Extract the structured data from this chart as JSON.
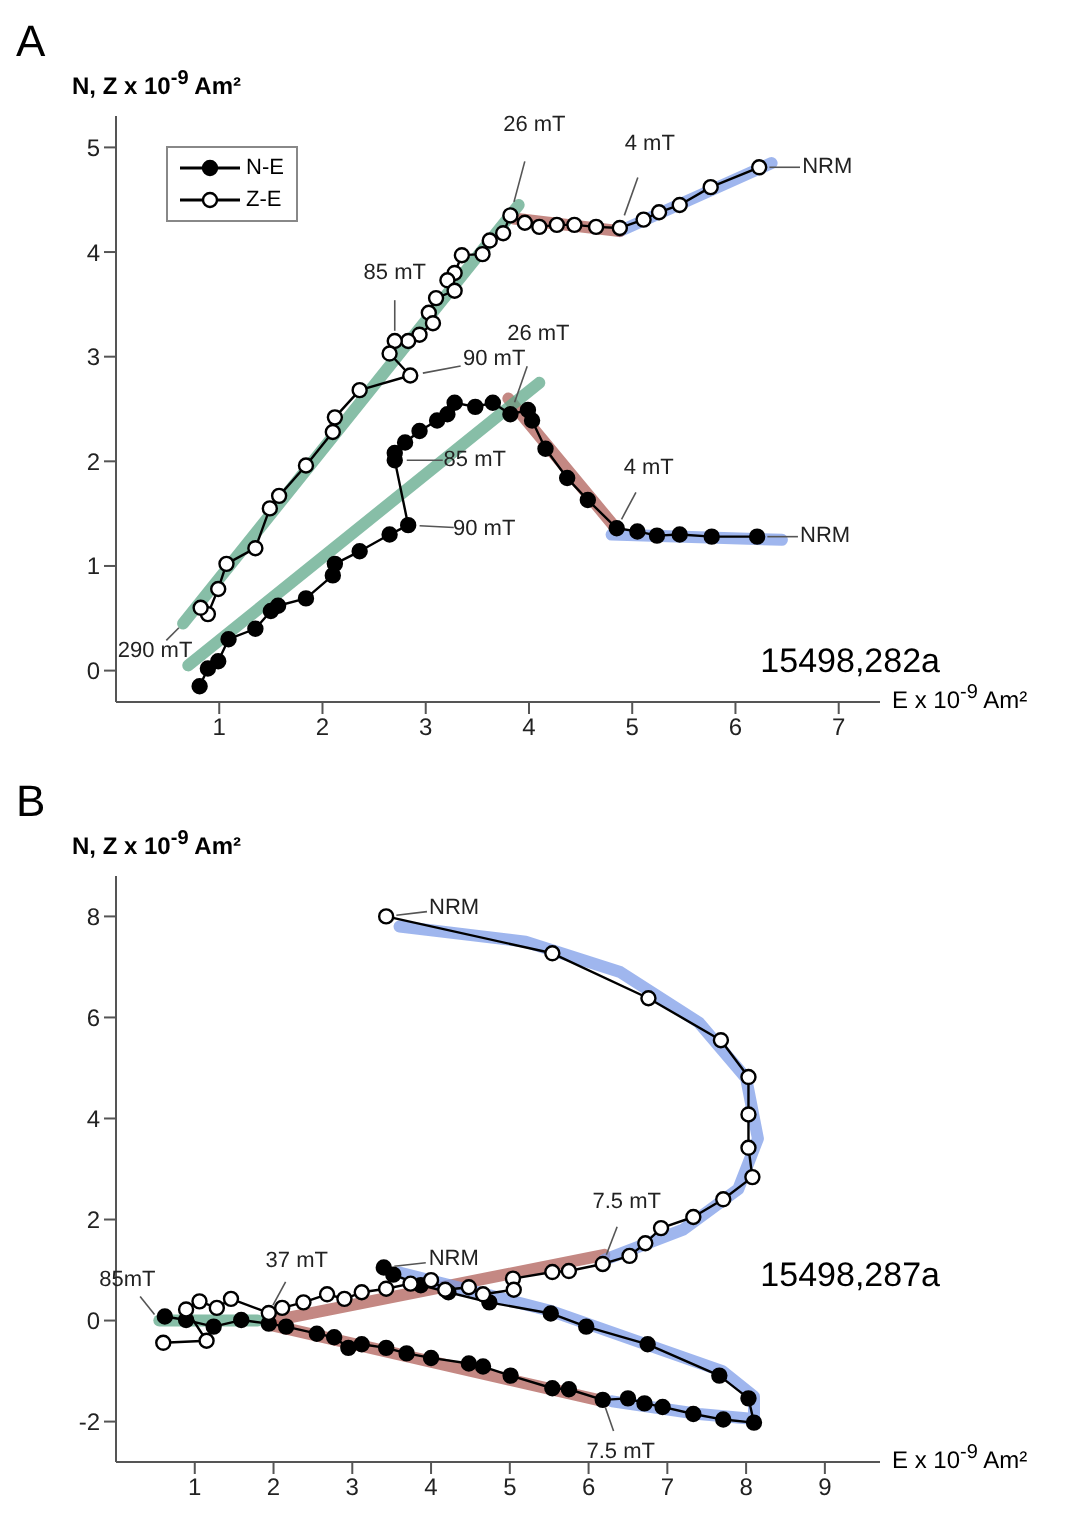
{
  "chart_data": [
    {
      "type": "line",
      "title": "A",
      "ylabel": "N, Z x 10$^{-9}$ Am²",
      "xlabel": "E x 10$^{-9}$ Am²",
      "xlim": [
        0,
        7.4
      ],
      "xticks": [
        1,
        2,
        3,
        4,
        5,
        6,
        7
      ],
      "ylim": [
        -0.3,
        5.3
      ],
      "yticks": [
        0,
        1,
        2,
        3,
        4,
        5
      ],
      "legend": "top left",
      "series": [
        {
          "name": "N-E",
          "color": "#000000",
          "marker": "circle",
          "x": [
            6.21,
            5.77,
            5.46,
            5.24,
            5.05,
            4.85,
            4.57,
            4.37,
            4.16,
            4.03,
            3.99,
            3.82,
            3.65,
            3.48,
            3.28,
            3.21,
            3.11,
            2.94,
            2.8,
            2.7,
            2.7,
            2.83,
            2.65,
            2.36,
            2.12,
            2.1,
            1.84,
            1.57,
            1.5,
            1.35,
            1.09,
            0.99,
            0.89,
            0.81
          ],
          "values": [
            1.28,
            1.28,
            1.3,
            1.29,
            1.33,
            1.36,
            1.63,
            1.84,
            2.12,
            2.39,
            2.49,
            2.45,
            2.56,
            2.52,
            2.56,
            2.45,
            2.39,
            2.29,
            2.18,
            2.08,
            2.01,
            1.39,
            1.3,
            1.14,
            1.02,
            0.91,
            0.69,
            0.62,
            0.57,
            0.4,
            0.3,
            0.09,
            0.02,
            -0.15
          ]
        },
        {
          "name": "Z-E",
          "color": "#000000",
          "marker": "circle",
          "x": [
            6.23,
            5.76,
            5.46,
            5.26,
            5.11,
            4.88,
            4.65,
            4.44,
            4.27,
            4.1,
            3.96,
            3.82,
            3.75,
            3.62,
            3.55,
            3.35,
            3.28,
            3.21,
            3.28,
            3.1,
            3.03,
            3.07,
            2.94,
            2.83,
            2.7,
            2.65,
            2.85,
            2.36,
            2.12,
            2.1,
            1.84,
            1.58,
            1.49,
            1.35,
            1.07,
            0.99,
            0.89,
            0.82
          ],
          "values": [
            4.81,
            4.62,
            4.45,
            4.38,
            4.31,
            4.23,
            4.24,
            4.26,
            4.26,
            4.24,
            4.28,
            4.35,
            4.18,
            4.11,
            3.98,
            3.97,
            3.8,
            3.73,
            3.63,
            3.56,
            3.42,
            3.32,
            3.21,
            3.15,
            3.15,
            3.03,
            2.82,
            2.68,
            2.42,
            2.28,
            1.96,
            1.67,
            1.55,
            1.17,
            1.02,
            0.78,
            0.54,
            0.6
          ]
        },
        {
          "type": "line",
          "color": "#7f9de8",
          "x": [
            4.88,
            6.35
          ],
          "values": [
            4.2,
            4.85
          ]
        },
        {
          "type": "line",
          "color": "#b0605a",
          "x": [
            3.85,
            4.88
          ],
          "values": [
            4.32,
            4.2
          ]
        },
        {
          "type": "line",
          "color": "#5fa88a",
          "x": [
            0.65,
            3.9
          ],
          "values": [
            0.45,
            4.45
          ]
        },
        {
          "type": "line",
          "color": "#7f9de8",
          "x": [
            4.8,
            6.45
          ],
          "values": [
            1.3,
            1.25
          ]
        },
        {
          "type": "line",
          "color": "#b0605a",
          "x": [
            3.8,
            4.85
          ],
          "values": [
            2.6,
            1.35
          ]
        },
        {
          "type": "line",
          "color": "#5fa88a",
          "x": [
            0.7,
            4.1
          ],
          "values": [
            0.05,
            2.75
          ]
        }
      ],
      "annotations": [
        {
          "text": "26 mT",
          "x": 3.82,
          "y": 4.35
        },
        {
          "text": "4 mT",
          "x": 4.88,
          "y": 4.23
        },
        {
          "text": "NRM",
          "x": 6.23,
          "y": 4.81
        },
        {
          "text": "90 mT",
          "x": 2.85,
          "y": 2.82
        },
        {
          "text": "85 mT",
          "x": 2.7,
          "y": 3.15
        },
        {
          "text": "26 mT",
          "x": 3.82,
          "y": 2.45
        },
        {
          "text": "85 mT",
          "x": 2.7,
          "y": 2.01
        },
        {
          "text": "4 mT",
          "x": 4.85,
          "y": 1.36
        },
        {
          "text": "NRM",
          "x": 6.21,
          "y": 1.28
        },
        {
          "text": "90 mT",
          "x": 2.83,
          "y": 1.39
        },
        {
          "text": "290 mT",
          "x": 0.65,
          "y": 0.45
        },
        "15498,282a"
      ]
    },
    {
      "type": "line",
      "title": "B",
      "ylabel": "N, Z x 10$^{-9}$ Am²",
      "xlabel": "E x 10$^{-9}$ Am²",
      "xlim": [
        0,
        9.7
      ],
      "xticks": [
        1,
        2,
        3,
        4,
        5,
        6,
        7,
        8,
        9
      ],
      "ylim": [
        -2.8,
        8.8
      ],
      "yticks": [
        -2,
        0,
        2,
        4,
        6,
        8
      ],
      "series": [
        {
          "color": "#000000",
          "marker": "circle",
          "x": [
            3.4,
            3.52,
            3.87,
            4.22,
            4.74,
            5.52,
            5.97,
            6.75,
            7.66,
            8.03,
            8.1,
            7.71,
            7.33,
            6.94,
            6.71,
            6.5,
            6.18,
            5.75,
            5.54,
            5.01,
            4.66,
            4.48,
            4.0,
            3.69,
            3.43,
            3.12,
            2.95,
            2.77,
            2.55,
            2.16,
            1.94,
            1.59,
            1.24,
            0.89,
            0.62
          ],
          "values": [
            1.05,
            0.91,
            0.7,
            0.56,
            0.36,
            0.14,
            -0.12,
            -0.47,
            -1.09,
            -1.54,
            -2.02,
            -1.96,
            -1.85,
            -1.71,
            -1.64,
            -1.54,
            -1.57,
            -1.36,
            -1.34,
            -1.09,
            -0.91,
            -0.85,
            -0.74,
            -0.65,
            -0.54,
            -0.47,
            -0.54,
            -0.33,
            -0.26,
            -0.12,
            -0.06,
            0.01,
            -0.12,
            0.01,
            0.08
          ]
        },
        {
          "color": "#000000",
          "marker": "circle",
          "x": [
            3.43,
            5.54,
            6.76,
            7.68,
            8.03,
            8.03,
            8.03,
            8.08,
            7.71,
            7.33,
            6.92,
            6.72,
            6.52,
            6.18,
            5.75,
            5.54,
            5.04,
            5.05,
            4.66,
            4.48,
            4.18,
            4.0,
            3.74,
            3.43,
            3.12,
            2.9,
            2.68,
            2.38,
            2.11,
            1.94,
            1.46,
            1.28,
            1.06,
            0.89,
            1.15,
            0.6
          ],
          "values": [
            8.0,
            7.27,
            6.38,
            5.55,
            4.82,
            4.08,
            3.42,
            2.84,
            2.4,
            2.05,
            1.83,
            1.53,
            1.28,
            1.12,
            0.98,
            0.96,
            0.83,
            0.61,
            0.52,
            0.66,
            0.61,
            0.8,
            0.73,
            0.63,
            0.56,
            0.43,
            0.52,
            0.36,
            0.25,
            0.15,
            0.43,
            0.25,
            0.38,
            0.22,
            -0.4,
            -0.44
          ]
        },
        {
          "type": "line",
          "color": "#5fa88a",
          "x": [
            0.55,
            1.8
          ],
          "values": [
            0.0,
            0.0
          ]
        },
        {
          "type": "line",
          "color": "#b0605a",
          "x": [
            2.0,
            6.2
          ],
          "values": [
            0.0,
            1.3
          ]
        },
        {
          "type": "line",
          "color": "#b0605a",
          "x": [
            2.0,
            6.2
          ],
          "values": [
            -0.1,
            -1.6
          ]
        },
        {
          "type": "line",
          "color": "#7f9de8",
          "x": [
            6.2,
            7.2,
            7.9,
            8.15,
            8.0,
            7.4,
            6.4,
            5.2,
            3.6
          ],
          "values": [
            1.2,
            1.8,
            2.6,
            3.6,
            4.8,
            5.9,
            6.9,
            7.5,
            7.8
          ]
        },
        {
          "type": "line",
          "color": "#7f9de8",
          "x": [
            3.6,
            5.5,
            7.7,
            8.1,
            8.1,
            7.4,
            6.3
          ],
          "values": [
            0.95,
            0.2,
            -1.0,
            -1.5,
            -1.95,
            -1.85,
            -1.6
          ]
        }
      ],
      "annotations": [
        {
          "text": "NRM",
          "x": 3.43,
          "y": 8.0
        },
        {
          "text": "7.5 mT",
          "x": 6.18,
          "y": 1.12
        },
        {
          "text": "37 mT",
          "x": 1.94,
          "y": 0.15
        },
        {
          "text": "NRM",
          "x": 3.4,
          "y": 1.05
        },
        {
          "text": "85mT",
          "x": 0.55,
          "y": 0.0
        },
        {
          "text": "7.5 mT",
          "x": 6.18,
          "y": -1.57
        },
        "15498,287a"
      ]
    }
  ]
}
